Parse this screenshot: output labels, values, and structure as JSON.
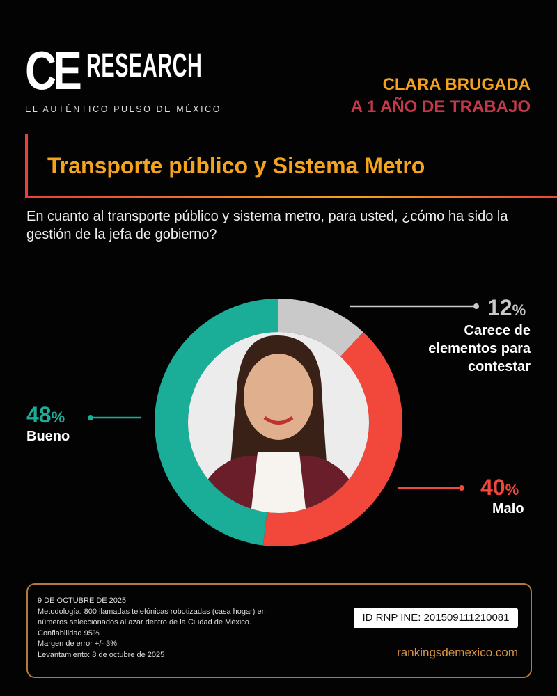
{
  "brand": {
    "logo_text_ce": "CE",
    "logo_text_research": "RESEARCH",
    "tagline": "EL AUTÉNTICO PULSO DE MÉXICO"
  },
  "header": {
    "line1": "CLARA BRUGADA",
    "line2": "A 1 AÑO DE TRABAJO"
  },
  "section_title": "Transporte público y Sistema Metro",
  "question": "En cuanto al transporte público y sistema metro, para usted, ¿cómo ha sido la gestión de la jefa de gobierno?",
  "colors": {
    "teal": "#1aae99",
    "red": "#f2473b",
    "gray": "#c9c9c9",
    "orange": "#f5a31f",
    "darkred": "#c3394a"
  },
  "chart_data": {
    "type": "pie",
    "donut": true,
    "start": "top, clockwise",
    "slices": [
      {
        "label": "Carece de elementos para contestar",
        "value": 12,
        "display": "12",
        "color": "#c9c9c9"
      },
      {
        "label": "Malo",
        "value": 40,
        "display": "40",
        "color": "#f2473b"
      },
      {
        "label": "Bueno",
        "value": 48,
        "display": "48",
        "color": "#1aae99"
      }
    ],
    "unit": "%"
  },
  "footer": {
    "date": "9 DE OCTUBRE DE 2025",
    "method1": "Metodología: 800 llamadas telefónicas robotizadas (casa hogar) en",
    "method2": "números seleccionados al azar dentro de la Ciudad de México.",
    "confidence": "Confiabilidad 95%",
    "margin": "Margen de error +/- 3%",
    "survey": "Levantamiento: 8 de octubre de 2025",
    "id": "ID RNP INE: 201509111210081",
    "website": "rankingsdemexico.com"
  }
}
